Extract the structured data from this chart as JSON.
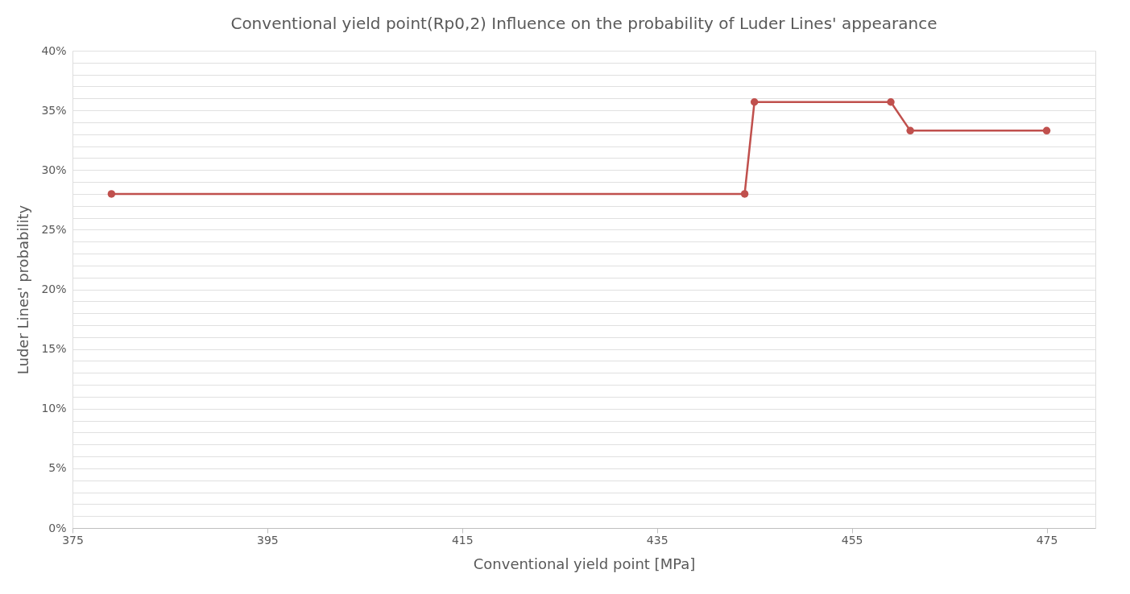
{
  "chart_data": {
    "type": "line",
    "title": "Conventional yield point(Rp0,2) Influence on the probability of Luder Lines' appearance",
    "xlabel": "Conventional yield point [MPa]",
    "ylabel": "Luder Lines' probability",
    "x": [
      379,
      444,
      445,
      459,
      461,
      475
    ],
    "series": [
      {
        "color": "#c0504d",
        "values": [
          28,
          28,
          35.7,
          35.7,
          33.3,
          33.3
        ]
      }
    ],
    "xlim": [
      375,
      480
    ],
    "xticks": [
      375,
      395,
      415,
      435,
      455,
      475
    ],
    "ylim": [
      0,
      40
    ],
    "yticks": [
      {
        "value": 0,
        "label": "0%"
      },
      {
        "value": 1,
        "label": null
      },
      {
        "value": 2,
        "label": null
      },
      {
        "value": 3,
        "label": null
      },
      {
        "value": 4,
        "label": null
      },
      {
        "value": 5,
        "label": "5%"
      },
      {
        "value": 6,
        "label": null
      },
      {
        "value": 7,
        "label": null
      },
      {
        "value": 8,
        "label": null
      },
      {
        "value": 9,
        "label": null
      },
      {
        "value": 10,
        "label": "10%"
      },
      {
        "value": 11,
        "label": null
      },
      {
        "value": 12,
        "label": null
      },
      {
        "value": 13,
        "label": null
      },
      {
        "value": 14,
        "label": null
      },
      {
        "value": 15,
        "label": "15%"
      },
      {
        "value": 16,
        "label": null
      },
      {
        "value": 17,
        "label": null
      },
      {
        "value": 18,
        "label": null
      },
      {
        "value": 19,
        "label": null
      },
      {
        "value": 20,
        "label": "20%"
      },
      {
        "value": 21,
        "label": null
      },
      {
        "value": 22,
        "label": null
      },
      {
        "value": 23,
        "label": null
      },
      {
        "value": 24,
        "label": null
      },
      {
        "value": 25,
        "label": "25%"
      },
      {
        "value": 26,
        "label": null
      },
      {
        "value": 27,
        "label": null
      },
      {
        "value": 28,
        "label": null
      },
      {
        "value": 29,
        "label": null
      },
      {
        "value": 30,
        "label": "30%"
      },
      {
        "value": 31,
        "label": null
      },
      {
        "value": 32,
        "label": null
      },
      {
        "value": 33,
        "label": null
      },
      {
        "value": 34,
        "label": null
      },
      {
        "value": 35,
        "label": "35%"
      },
      {
        "value": 36,
        "label": null
      },
      {
        "value": 37,
        "label": null
      },
      {
        "value": 38,
        "label": null
      },
      {
        "value": 39,
        "label": null
      },
      {
        "value": 40,
        "label": "40%"
      }
    ],
    "grid": "y",
    "marker": "circle",
    "line_style": "solid"
  }
}
